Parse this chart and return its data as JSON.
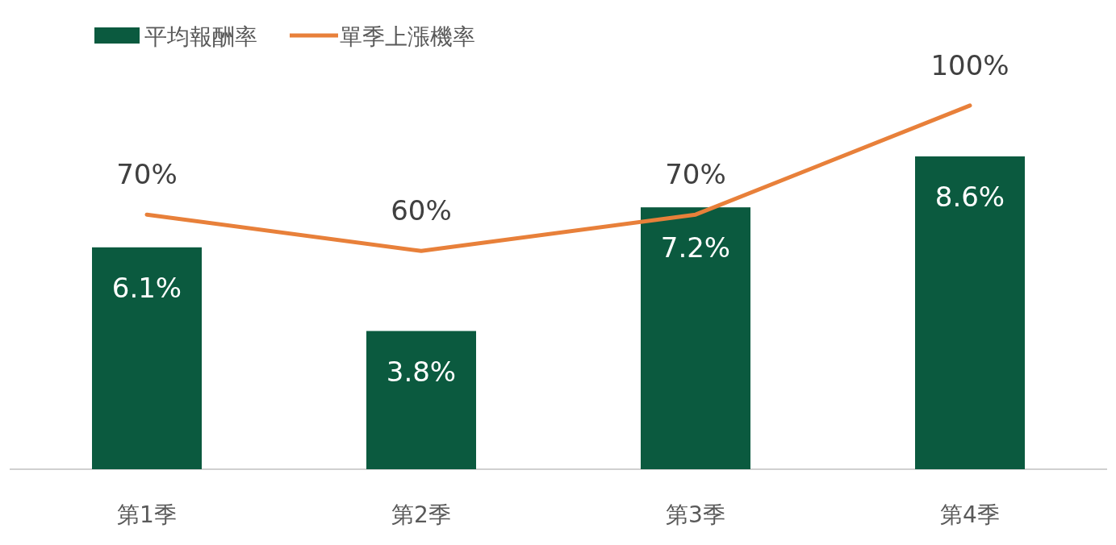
{
  "chart_data": {
    "type": "bar",
    "categories": [
      "第1季",
      "第2季",
      "第3季",
      "第4季"
    ],
    "series": [
      {
        "name": "平均報酬率",
        "color": "#0b5a3f",
        "values": [
          6.1,
          3.8,
          7.2,
          8.6
        ],
        "value_labels": [
          "6.1%",
          "3.8%",
          "7.2%",
          "8.6%"
        ]
      },
      {
        "name": "單季上漲機率",
        "type": "line",
        "axis": "y2",
        "color": "#e8803a",
        "values": [
          70,
          60,
          70,
          100
        ],
        "value_labels": [
          "70%",
          "60%",
          "70%",
          "100%"
        ]
      }
    ],
    "legend": "top left",
    "tick_labels": "x",
    "marker": "none",
    "line_style": "solid"
  }
}
